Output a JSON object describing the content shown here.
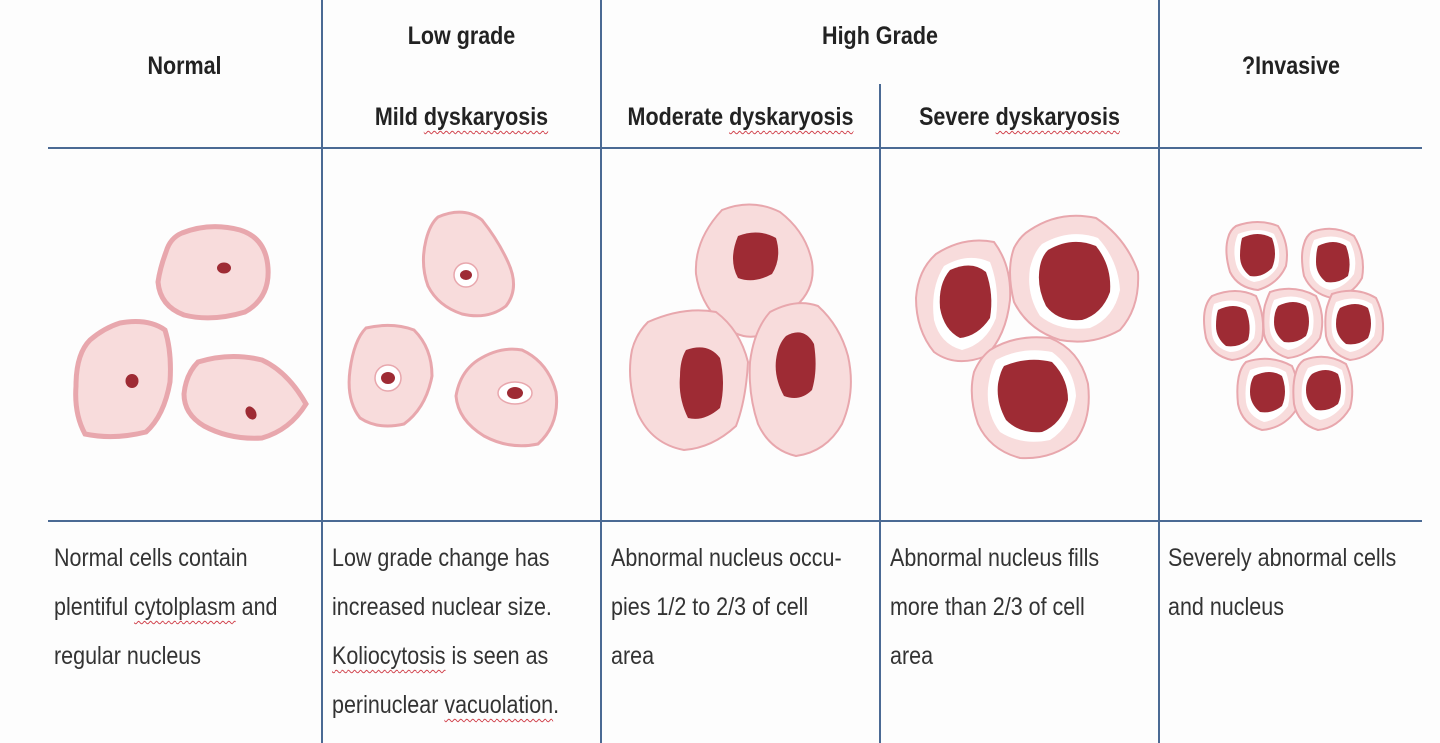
{
  "headers": {
    "normal": "Normal",
    "low_grade": "Low grade",
    "high_grade": "High Grade",
    "invasive": "?Invasive",
    "mild": [
      "Mild ",
      "dyskaryosis"
    ],
    "moderate": [
      "Moderate ",
      "dyskaryosis"
    ],
    "severe": [
      "Severe ",
      "dyskaryosis"
    ]
  },
  "descriptions": {
    "normal": [
      [
        "Normal cells contain"
      ],
      [
        "plentiful ",
        "cytolplasm",
        " and"
      ],
      [
        "regular nucleus"
      ]
    ],
    "mild": [
      [
        "Low grade change has"
      ],
      [
        "increased nuclear size."
      ],
      [
        "",
        "Koliocytosis",
        " is seen as"
      ],
      [
        "perinuclear ",
        "vacuolation",
        "."
      ]
    ],
    "moderate": [
      [
        "Abnormal nucleus occu-"
      ],
      [
        "pies 1/2 to 2/3 of cell"
      ],
      [
        "area"
      ]
    ],
    "severe": [
      [
        "Abnormal nucleus fills"
      ],
      [
        "more than 2/3 of cell"
      ],
      [
        "area"
      ]
    ],
    "invasive": [
      [
        "Severely abnormal cells"
      ],
      [
        "and nucleus"
      ]
    ]
  },
  "colors": {
    "grid_line": "#4b6a94",
    "cytoplasm": "#f8dcdc",
    "cell_border": "#e8a7ad",
    "nucleus": "#9e2b34",
    "halo": "#ffffff"
  }
}
